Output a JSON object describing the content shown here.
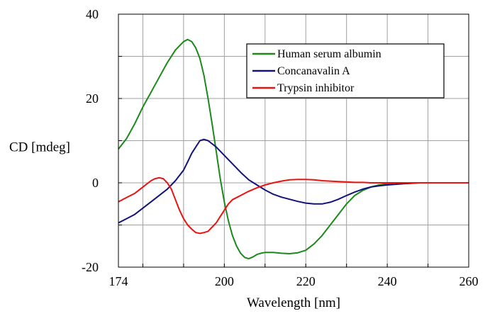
{
  "chart_data": {
    "type": "line",
    "xlabel": "Wavelength [nm]",
    "ylabel": "CD [mdeg]",
    "xlim": [
      174,
      260
    ],
    "ylim": [
      -20,
      40
    ],
    "x_ticks": [
      174,
      200,
      220,
      240,
      260
    ],
    "x_minor_ticks": [
      180,
      190,
      210,
      230,
      250
    ],
    "y_ticks": [
      -20,
      0,
      20,
      40
    ],
    "y_minor_ticks": [
      -10,
      10,
      30
    ],
    "grid": true,
    "legend_position": "top-right",
    "series": [
      {
        "name": "Human serum albumin",
        "color": "#1a8a1a",
        "x": [
          174,
          176,
          178,
          180,
          182,
          184,
          186,
          188,
          190,
          191,
          192,
          193,
          194,
          195,
          196,
          197,
          198,
          199,
          200,
          201,
          202,
          203,
          204,
          205,
          206,
          207,
          208,
          209,
          210,
          212,
          214,
          216,
          218,
          220,
          222,
          224,
          226,
          228,
          230,
          232,
          234,
          236,
          238,
          240,
          242,
          244,
          246,
          248,
          250,
          255,
          260
        ],
        "y": [
          8,
          10.5,
          14,
          18,
          21.5,
          25,
          28.5,
          31.5,
          33.5,
          34,
          33.5,
          32,
          29.5,
          25.5,
          20,
          14,
          7.5,
          1,
          -4.5,
          -9,
          -12.5,
          -15,
          -16.7,
          -17.7,
          -18,
          -17.6,
          -17,
          -16.7,
          -16.5,
          -16.5,
          -16.7,
          -16.8,
          -16.6,
          -16,
          -14.5,
          -12.5,
          -10,
          -7.5,
          -5,
          -3,
          -1.8,
          -1,
          -0.5,
          -0.2,
          0,
          0,
          0,
          0,
          0,
          0,
          0
        ]
      },
      {
        "name": "Concanavalin A",
        "color": "#13137a",
        "x": [
          174,
          176,
          178,
          180,
          182,
          184,
          186,
          188,
          190,
          191,
          192,
          193,
          194,
          195,
          196,
          198,
          200,
          202,
          204,
          206,
          208,
          210,
          212,
          214,
          216,
          218,
          220,
          222,
          224,
          226,
          228,
          230,
          232,
          234,
          236,
          238,
          240,
          244,
          248,
          252,
          256,
          260
        ],
        "y": [
          -9.5,
          -8.5,
          -7.5,
          -6,
          -4.5,
          -3,
          -1.5,
          0.5,
          3,
          5,
          7,
          8.5,
          10,
          10.3,
          10,
          8.5,
          6.5,
          4.5,
          2.5,
          0.7,
          -0.5,
          -1.7,
          -2.7,
          -3.4,
          -3.9,
          -4.4,
          -4.8,
          -5,
          -5,
          -4.6,
          -3.9,
          -3,
          -2.2,
          -1.5,
          -1,
          -0.7,
          -0.5,
          -0.2,
          0,
          0,
          0,
          0
        ]
      },
      {
        "name": "Trypsin inhibitor",
        "color": "#e8140f",
        "x": [
          174,
          176,
          178,
          180,
          182,
          183,
          184,
          185,
          186,
          187,
          188,
          189,
          190,
          191,
          192,
          193,
          194,
          195,
          196,
          197,
          198,
          199,
          200,
          201,
          202,
          204,
          206,
          208,
          210,
          212,
          214,
          216,
          218,
          220,
          222,
          224,
          226,
          228,
          230,
          232,
          234,
          236,
          238,
          240,
          244,
          248,
          252,
          256,
          260
        ],
        "y": [
          -4.5,
          -3.5,
          -2.5,
          -1,
          0.5,
          1,
          1.2,
          1,
          0,
          -1.5,
          -4,
          -6.5,
          -8.5,
          -10,
          -11,
          -11.8,
          -12,
          -11.8,
          -11.5,
          -10.5,
          -9.5,
          -8,
          -6.5,
          -5,
          -4,
          -3,
          -2,
          -1.2,
          -0.5,
          0,
          0.4,
          0.7,
          0.8,
          0.8,
          0.7,
          0.5,
          0.4,
          0.3,
          0.2,
          0.1,
          0.1,
          0,
          0,
          0,
          0,
          0,
          0,
          0,
          0
        ]
      }
    ]
  }
}
